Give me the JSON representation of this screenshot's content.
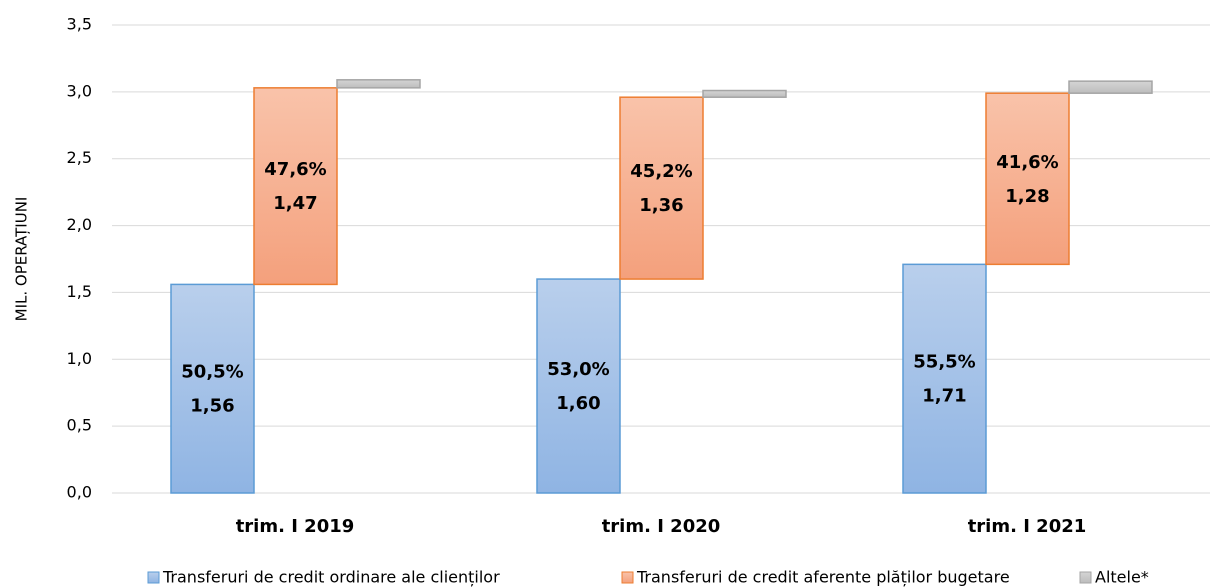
{
  "chart_data": {
    "type": "waterfall",
    "y_label": "MIL. OPERAȚIUNI",
    "categories": [
      "trim. I 2019",
      "trim. I 2020",
      "trim. I 2021"
    ],
    "series": [
      {
        "name": "Transferuri de credit ordinare ale clienților",
        "color": "#5b9bd5",
        "values": [
          1.56,
          1.6,
          1.71
        ],
        "value_labels": [
          "1,56",
          "1,60",
          "1,71"
        ],
        "share_labels": [
          "50,5%",
          "53,0%",
          "55,5%"
        ]
      },
      {
        "name": "Transferuri de credit aferente plăților bugetare",
        "color": "#ed7d31",
        "values": [
          1.47,
          1.36,
          1.28
        ],
        "value_labels": [
          "1,47",
          "1,36",
          "1,28"
        ],
        "share_labels": [
          "47,6%",
          "45,2%",
          "41,6%"
        ]
      },
      {
        "name": "Altele*",
        "color": "#a5a5a5",
        "values": [
          0.06,
          0.05,
          0.09
        ]
      }
    ],
    "ylim": [
      0,
      3.5
    ],
    "yticks": [
      {
        "value": 0,
        "label": "0,0"
      },
      {
        "value": 0.5,
        "label": "0,5"
      },
      {
        "value": 1,
        "label": "1,0"
      },
      {
        "value": 1.5,
        "label": "1,5"
      },
      {
        "value": 2,
        "label": "2,0"
      },
      {
        "value": 2.5,
        "label": "2,5"
      },
      {
        "value": 3,
        "label": "3,0"
      },
      {
        "value": 3.5,
        "label": "3,5"
      }
    ],
    "grid": true
  }
}
